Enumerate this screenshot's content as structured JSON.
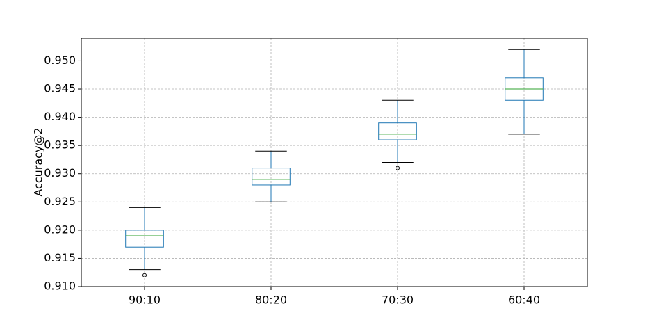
{
  "chart_data": {
    "type": "box",
    "y_label": "Accuracy@2",
    "categories": [
      "90:10",
      "80:20",
      "70:30",
      "60:40"
    ],
    "whisker_low": [
      0.913,
      0.925,
      0.932,
      0.937
    ],
    "q1": [
      0.917,
      0.928,
      0.936,
      0.943
    ],
    "median": [
      0.919,
      0.929,
      0.937,
      0.945
    ],
    "q3": [
      0.92,
      0.931,
      0.939,
      0.947
    ],
    "whisker_high": [
      0.924,
      0.934,
      0.943,
      0.952
    ],
    "outliers": [
      [
        0.912
      ],
      [],
      [
        0.931
      ],
      []
    ],
    "box_color": "#1f77b4",
    "median_color": "#2ca02c",
    "cap_color": "#000000",
    "ylim": [
      0.91,
      0.954
    ],
    "yticks": [
      {
        "value": 0.91,
        "label": "0.910"
      },
      0.915,
      {
        "value": 0.92,
        "label": "0.920"
      },
      0.925,
      {
        "value": 0.93,
        "label": "0.930"
      },
      0.935,
      {
        "value": 0.94,
        "label": "0.940"
      },
      0.945,
      {
        "value": 0.95,
        "label": "0.950"
      }
    ],
    "grid": true
  }
}
